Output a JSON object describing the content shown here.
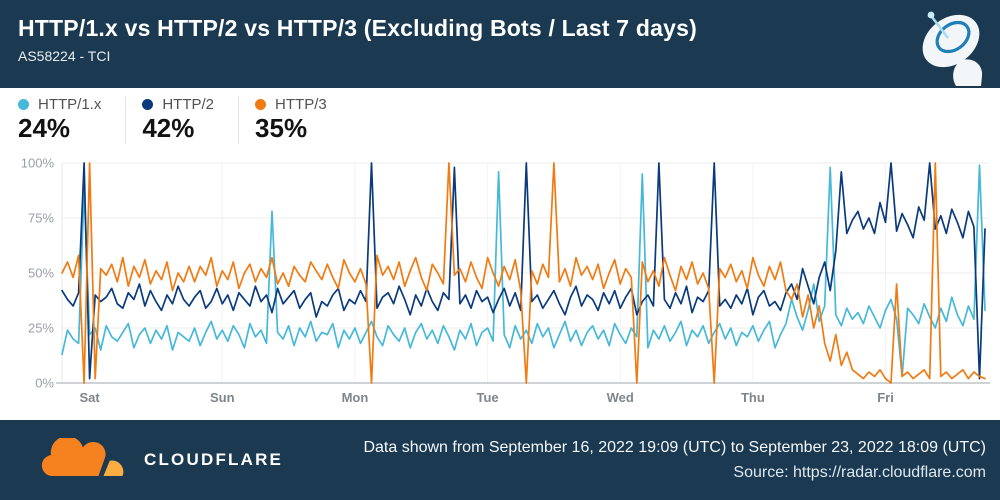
{
  "header": {
    "title": "HTTP/1.x vs HTTP/2 vs HTTP/3 (Excluding Bots / Last 7 days)",
    "subtitle": "AS58224 - TCI"
  },
  "legend": {
    "items": [
      {
        "label": "HTTP/1.x",
        "value": "24%",
        "color": "#46b8da"
      },
      {
        "label": "HTTP/2",
        "value": "42%",
        "color": "#0a3a7d"
      },
      {
        "label": "HTTP/3",
        "value": "35%",
        "color": "#f07b12"
      }
    ]
  },
  "footer": {
    "brand": "CLOUDFLARE",
    "line1": "Data shown from September 16, 2022 19:09 (UTC) to September 23, 2022 18:09 (UTC)",
    "line2": "Source: https://radar.cloudflare.com"
  },
  "chart_data": {
    "type": "line",
    "title": "HTTP/1.x vs HTTP/2 vs HTTP/3 (Excluding Bots / Last 7 days)",
    "subtitle": "AS58224 - TCI",
    "grid": true,
    "legend_position": "top-left above chart",
    "x_axis": {
      "tick_labels": [
        "Sat",
        "Sun",
        "Mon",
        "Tue",
        "Wed",
        "Thu",
        "Fri"
      ],
      "tick_positions_hours": [
        5,
        29,
        53,
        77,
        101,
        125,
        149
      ],
      "total_points": 168,
      "unit": "hours (Sep 16 2022 19:09 UTC to Sep 23 2022 18:09 UTC, estimated hourly samples)"
    },
    "y_axis": {
      "tick_labels": [
        "0%",
        "25%",
        "50%",
        "75%",
        "100%"
      ],
      "tick_values": [
        0,
        25,
        50,
        75,
        100
      ],
      "range": [
        0,
        100
      ],
      "unit": "percent of traffic"
    },
    "series": [
      {
        "name": "HTTP/1.x",
        "color": "#46b8da",
        "average_label": "24%",
        "values": [
          13,
          24,
          20,
          18,
          88,
          22,
          25,
          15,
          26,
          21,
          19,
          23,
          27,
          16,
          22,
          25,
          18,
          24,
          20,
          26,
          15,
          23,
          21,
          19,
          25,
          17,
          23,
          28,
          20,
          24,
          19,
          26,
          22,
          16,
          27,
          21,
          24,
          18,
          78,
          23,
          20,
          26,
          17,
          25,
          21,
          28,
          19,
          23,
          22,
          27,
          16,
          24,
          20,
          25,
          18,
          23,
          28,
          21,
          17,
          26,
          22,
          19,
          25,
          16,
          23,
          27,
          20,
          24,
          18,
          26,
          21,
          15,
          24,
          20,
          27,
          17,
          23,
          25,
          19,
          96,
          22,
          16,
          26,
          20,
          24,
          18,
          27,
          21,
          25,
          16,
          22,
          28,
          19,
          24,
          17,
          23,
          26,
          20,
          24,
          17,
          27,
          22,
          18,
          25,
          21,
          95,
          16,
          24,
          20,
          26,
          19,
          23,
          28,
          17,
          24,
          21,
          26,
          18,
          23,
          27,
          20,
          25,
          17,
          23,
          21,
          26,
          19,
          24,
          28,
          16,
          22,
          27,
          38,
          30,
          24,
          33,
          45,
          28,
          35,
          98,
          31,
          26,
          34,
          29,
          32,
          27,
          35,
          30,
          25,
          33,
          38,
          29,
          3,
          34,
          31,
          27,
          36,
          30,
          25,
          34,
          28,
          39,
          31,
          26,
          35,
          29,
          99,
          33
        ]
      },
      {
        "name": "HTTP/2",
        "color": "#0a3a7d",
        "average_label": "42%",
        "values": [
          42,
          38,
          35,
          41,
          100,
          2,
          40,
          37,
          39,
          43,
          36,
          34,
          41,
          38,
          45,
          35,
          42,
          37,
          33,
          40,
          36,
          44,
          38,
          35,
          39,
          42,
          34,
          37,
          43,
          36,
          40,
          33,
          41,
          38,
          35,
          44,
          37,
          40,
          32,
          43,
          36,
          39,
          42,
          34,
          38,
          41,
          30,
          37,
          35,
          40,
          43,
          33,
          38,
          36,
          42,
          37,
          100,
          34,
          39,
          41,
          36,
          44,
          38,
          31,
          40,
          35,
          43,
          37,
          33,
          41,
          38,
          98,
          36,
          40,
          34,
          42,
          37,
          39,
          32,
          38,
          43,
          35,
          41,
          33,
          100,
          37,
          40,
          34,
          38,
          42,
          36,
          31,
          39,
          44,
          35,
          40,
          38,
          33,
          41,
          36,
          42,
          34,
          39,
          43,
          31,
          37,
          40,
          35,
          100,
          38,
          34,
          41,
          36,
          44,
          32,
          39,
          37,
          42,
          100,
          35,
          38,
          34,
          40,
          36,
          43,
          31,
          39,
          42,
          35,
          37,
          33,
          41,
          45,
          38,
          52,
          44,
          36,
          48,
          55,
          42,
          60,
          96,
          68,
          74,
          78,
          70,
          75,
          68,
          82,
          73,
          100,
          69,
          77,
          72,
          66,
          80,
          74,
          100,
          70,
          76,
          68,
          79,
          73,
          66,
          78,
          71,
          2,
          70
        ]
      },
      {
        "name": "HTTP/3",
        "color": "#f07b12",
        "average_label": "35%",
        "values": [
          50,
          55,
          48,
          58,
          0,
          100,
          2,
          52,
          49,
          54,
          46,
          57,
          44,
          53,
          48,
          56,
          45,
          51,
          47,
          55,
          42,
          50,
          46,
          53,
          46,
          53,
          49,
          57,
          44,
          51,
          47,
          55,
          43,
          50,
          54,
          46,
          52,
          48,
          57,
          45,
          50,
          44,
          53,
          49,
          46,
          55,
          51,
          47,
          54,
          48,
          43,
          56,
          50,
          46,
          52,
          45,
          0,
          58,
          49,
          53,
          47,
          55,
          44,
          51,
          57,
          48,
          42,
          54,
          50,
          45,
          100,
          49,
          52,
          46,
          55,
          48,
          43,
          57,
          50,
          44,
          53,
          47,
          56,
          42,
          0,
          51,
          45,
          54,
          48,
          100,
          46,
          52,
          44,
          57,
          49,
          53,
          47,
          54,
          43,
          50,
          56,
          45,
          52,
          48,
          0,
          55,
          46,
          51,
          44,
          57,
          49,
          42,
          53,
          47,
          55,
          45,
          50,
          43,
          0,
          52,
          48,
          54,
          46,
          51,
          43,
          57,
          49,
          44,
          53,
          47,
          55,
          42,
          38,
          45,
          30,
          40,
          25,
          35,
          18,
          10,
          22,
          8,
          14,
          6,
          4,
          2,
          5,
          3,
          6,
          2,
          0,
          45,
          3,
          5,
          2,
          4,
          6,
          2,
          100,
          3,
          5,
          2,
          4,
          6,
          2,
          5,
          3,
          2
        ]
      }
    ]
  }
}
